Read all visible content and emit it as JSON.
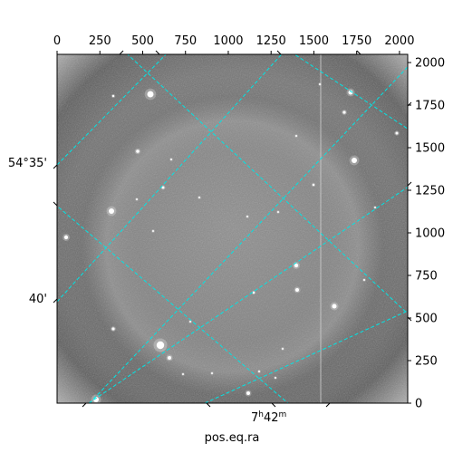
{
  "x_pixel_axis": {
    "ticks": [
      "0",
      "250",
      "500",
      "750",
      "1000",
      "1250",
      "1500",
      "1750",
      "2000"
    ]
  },
  "y_pixel_axis": {
    "ticks": [
      "0",
      "250",
      "500",
      "750",
      "1000",
      "1250",
      "1500",
      "1750",
      "2000"
    ]
  },
  "dec_labels": [
    "54°35'",
    "40'"
  ],
  "ra_label": {
    "hour": "7",
    "h": "h",
    "min": "42",
    "m": "m"
  },
  "xlabel": "pos.eq.ra",
  "colors": {
    "grid": "#00e5e5",
    "frame": "#000000",
    "background": "#ffffff"
  }
}
